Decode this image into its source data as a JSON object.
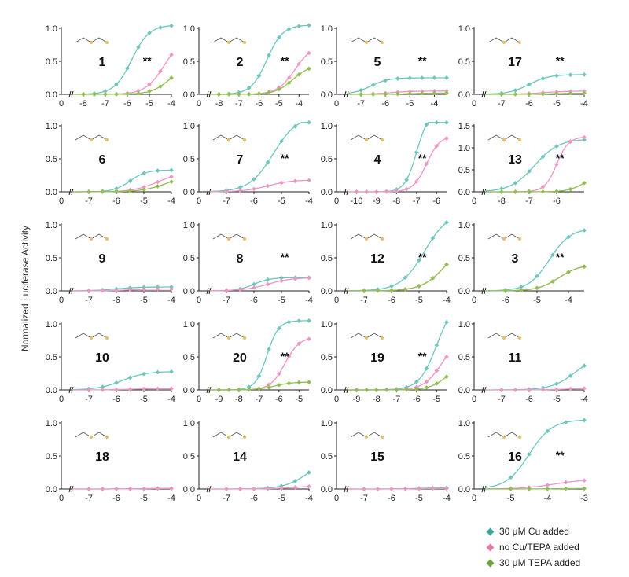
{
  "y_axis_label": "Normalized Luciferase Activity",
  "colors": {
    "cu": "#6cc6be",
    "none": "#ef95c4",
    "tepa": "#8fc04f",
    "mol": "#e6c06e"
  },
  "legend": [
    {
      "label": "30 μM Cu added",
      "color": "#3aa69c"
    },
    {
      "label": "no Cu/TEPA added",
      "color": "#e67aa8"
    },
    {
      "label": "30 μM TEPA added",
      "color": "#6aa33a"
    }
  ],
  "chart_data": [
    {
      "type": "line",
      "title": "1",
      "xlim": [
        -9,
        -4
      ],
      "ylim": [
        0,
        1
      ],
      "xticks": [
        "0",
        "-8",
        "-7",
        "-6",
        "-5",
        "-4"
      ],
      "yticks": [
        "0.0",
        "0.5",
        "1.0"
      ],
      "annotation": "**",
      "series": [
        {
          "name": "30 μM Cu added",
          "ec50": -5.8,
          "top": 1.05,
          "hill": 1.1
        },
        {
          "name": "no Cu/TEPA added",
          "ec50": -4.3,
          "top": 0.9,
          "hill": 1.0
        },
        {
          "name": "30 μM TEPA added",
          "ec50": -4.0,
          "top": 0.5,
          "hill": 1.0
        }
      ]
    },
    {
      "type": "line",
      "title": "2",
      "xlim": [
        -9,
        -3.5
      ],
      "ylim": [
        0,
        1
      ],
      "xticks": [
        "0",
        "-8",
        "-7",
        "-6",
        "-5",
        "-4"
      ],
      "yticks": [
        "0.0",
        "0.5",
        "1.0"
      ],
      "annotation": "**",
      "series": [
        {
          "name": "30 μM Cu added",
          "ec50": -5.6,
          "top": 1.05,
          "hill": 1.1
        },
        {
          "name": "no Cu/TEPA added",
          "ec50": -4.2,
          "top": 0.75,
          "hill": 1.0
        },
        {
          "name": "30 μM TEPA added",
          "ec50": -4.3,
          "top": 0.45,
          "hill": 1.0
        }
      ]
    },
    {
      "type": "line",
      "title": "5",
      "xlim": [
        -8,
        -3.5
      ],
      "ylim": [
        0,
        1
      ],
      "xticks": [
        "0",
        "-7",
        "-6",
        "-5",
        "-4"
      ],
      "yticks": [
        "0.0",
        "0.5",
        "1.0"
      ],
      "annotation": "**",
      "series": [
        {
          "name": "30 μM Cu added",
          "ec50": -6.6,
          "top": 0.25,
          "hill": 1.2
        },
        {
          "name": "no Cu/TEPA added",
          "ec50": -5.8,
          "top": 0.05,
          "hill": 1.0
        },
        {
          "name": "30 μM TEPA added",
          "ec50": -5.0,
          "top": 0.02,
          "hill": 1.0
        }
      ]
    },
    {
      "type": "line",
      "title": "17",
      "xlim": [
        -8,
        -4
      ],
      "ylim": [
        0,
        1
      ],
      "xticks": [
        "0",
        "-7",
        "-6",
        "-5",
        "-4"
      ],
      "yticks": [
        "0.0",
        "0.5",
        "1.0"
      ],
      "annotation": "**",
      "series": [
        {
          "name": "30 μM Cu added",
          "ec50": -6.0,
          "top": 0.3,
          "hill": 1.2
        },
        {
          "name": "no Cu/TEPA added",
          "ec50": -5.5,
          "top": 0.05,
          "hill": 1.0
        },
        {
          "name": "30 μM TEPA added",
          "ec50": -5.0,
          "top": 0.02,
          "hill": 1.0
        }
      ]
    },
    {
      "type": "line",
      "title": "6",
      "xlim": [
        -8,
        -4
      ],
      "ylim": [
        0,
        1
      ],
      "xticks": [
        "0",
        "-7",
        "-6",
        "-5",
        "-4"
      ],
      "yticks": [
        "0.0",
        "0.5",
        "1.0"
      ],
      "annotation": "",
      "series": [
        {
          "name": "30 μM Cu added",
          "ec50": -5.5,
          "top": 0.33,
          "hill": 1.5
        },
        {
          "name": "no Cu/TEPA added",
          "ec50": -4.5,
          "top": 0.3,
          "hill": 1.0
        },
        {
          "name": "30 μM TEPA added",
          "ec50": -4.2,
          "top": 0.25,
          "hill": 1.0
        }
      ]
    },
    {
      "type": "line",
      "title": "7",
      "xlim": [
        -8,
        -4
      ],
      "ylim": [
        0,
        1
      ],
      "xticks": [
        "0",
        "-7",
        "-6",
        "-5",
        "-4"
      ],
      "yticks": [
        "0.0",
        "0.5",
        "1.0"
      ],
      "annotation": "**",
      "series": [
        {
          "name": "30 μM Cu added",
          "ec50": -5.3,
          "top": 1.15,
          "hill": 1.0
        },
        {
          "name": "no Cu/TEPA added",
          "ec50": -5.5,
          "top": 0.18,
          "hill": 1.0
        }
      ]
    },
    {
      "type": "line",
      "title": "4",
      "xlim": [
        -11,
        -5.5
      ],
      "ylim": [
        0,
        1
      ],
      "xticks": [
        "0",
        "-10",
        "-9",
        "-8",
        "-7",
        "-6"
      ],
      "yticks": [
        "0.0",
        "0.5",
        "1.0"
      ],
      "annotation": "**",
      "series": [
        {
          "name": "30 μM Cu added",
          "ec50": -7.0,
          "top": 1.2,
          "hill": 1.5
        },
        {
          "name": "no Cu/TEPA added",
          "ec50": -6.5,
          "top": 0.85,
          "hill": 1.3
        }
      ]
    },
    {
      "type": "line",
      "title": "13",
      "xlim": [
        -9,
        -5
      ],
      "ylim": [
        0,
        1.5
      ],
      "xticks": [
        "0",
        "-8",
        "-7",
        "-6"
      ],
      "yticks": [
        "0.0",
        "0.5",
        "1.0",
        "1.5"
      ],
      "annotation": "**",
      "series": [
        {
          "name": "30 μM Cu added",
          "ec50": -6.8,
          "top": 1.2,
          "hill": 1.0
        },
        {
          "name": "no Cu/TEPA added",
          "ec50": -6.0,
          "top": 1.25,
          "hill": 2.0
        },
        {
          "name": "30 μM TEPA added",
          "ec50": -5.0,
          "top": 0.4,
          "hill": 1.5
        }
      ]
    },
    {
      "type": "line",
      "title": "9",
      "xlim": [
        -8,
        -4
      ],
      "ylim": [
        0,
        1
      ],
      "xticks": [
        "0",
        "-7",
        "-6",
        "-5",
        "-4"
      ],
      "yticks": [
        "0.0",
        "0.5",
        "1.0"
      ],
      "annotation": "",
      "series": [
        {
          "name": "30 μM Cu added",
          "ec50": -6.0,
          "top": 0.06,
          "hill": 1.0
        },
        {
          "name": "no Cu/TEPA added",
          "ec50": -5.5,
          "top": 0.03,
          "hill": 1.0
        }
      ]
    },
    {
      "type": "line",
      "title": "8",
      "xlim": [
        -8,
        -4
      ],
      "ylim": [
        0,
        1
      ],
      "xticks": [
        "0",
        "-7",
        "-6",
        "-5",
        "-4"
      ],
      "yticks": [
        "0.0",
        "0.5",
        "1.0"
      ],
      "annotation": "**",
      "series": [
        {
          "name": "30 μM Cu added",
          "ec50": -6.0,
          "top": 0.2,
          "hill": 1.5
        },
        {
          "name": "no Cu/TEPA added",
          "ec50": -5.5,
          "top": 0.2,
          "hill": 1.0
        }
      ]
    },
    {
      "type": "line",
      "title": "12",
      "xlim": [
        -8,
        -4
      ],
      "ylim": [
        0,
        1
      ],
      "xticks": [
        "0",
        "-7",
        "-6",
        "-5",
        "-4"
      ],
      "yticks": [
        "0.0",
        "0.5",
        "1.0"
      ],
      "annotation": "**",
      "series": [
        {
          "name": "30 μM Cu added",
          "ec50": -4.8,
          "top": 1.2,
          "hill": 1.0
        },
        {
          "name": "no Cu/TEPA added",
          "ec50": -4.0,
          "top": 0.8,
          "hill": 1.0
        },
        {
          "name": "30 μM TEPA added",
          "ec50": -4.0,
          "top": 0.8,
          "hill": 1.0
        }
      ]
    },
    {
      "type": "line",
      "title": "3",
      "xlim": [
        -7,
        -3.5
      ],
      "ylim": [
        0,
        1
      ],
      "xticks": [
        "0",
        "-6",
        "-5",
        "-4"
      ],
      "yticks": [
        "0.0",
        "0.5",
        "1.0"
      ],
      "annotation": "**",
      "series": [
        {
          "name": "30 μM Cu added",
          "ec50": -4.6,
          "top": 0.95,
          "hill": 1.3
        },
        {
          "name": "no Cu/TEPA added",
          "ec50": -4.3,
          "top": 0.4,
          "hill": 1.3
        },
        {
          "name": "30 μM TEPA added",
          "ec50": -4.3,
          "top": 0.4,
          "hill": 1.3
        }
      ]
    },
    {
      "type": "line",
      "title": "10",
      "xlim": [
        -8,
        -4
      ],
      "ylim": [
        0,
        1
      ],
      "xticks": [
        "0",
        "-7",
        "-6",
        "-5",
        "-4"
      ],
      "yticks": [
        "0.0",
        "0.5",
        "1.0"
      ],
      "annotation": "",
      "series": [
        {
          "name": "30 μM Cu added",
          "ec50": -5.8,
          "top": 0.28,
          "hill": 1.0
        },
        {
          "name": "no Cu/TEPA added",
          "ec50": -5.5,
          "top": 0.02,
          "hill": 1.0
        }
      ]
    },
    {
      "type": "line",
      "title": "20",
      "xlim": [
        -10,
        -4.5
      ],
      "ylim": [
        0,
        1
      ],
      "xticks": [
        "0",
        "-9",
        "-8",
        "-7",
        "-6",
        "-5"
      ],
      "yticks": [
        "0.0",
        "0.5",
        "1.0"
      ],
      "annotation": "**",
      "series": [
        {
          "name": "30 μM Cu added",
          "ec50": -6.6,
          "top": 1.05,
          "hill": 1.5
        },
        {
          "name": "no Cu/TEPA added",
          "ec50": -5.7,
          "top": 0.8,
          "hill": 1.2
        },
        {
          "name": "30 μM TEPA added",
          "ec50": -6.2,
          "top": 0.12,
          "hill": 1.0
        }
      ]
    },
    {
      "type": "line",
      "title": "19",
      "xlim": [
        -10,
        -4.5
      ],
      "ylim": [
        0,
        1
      ],
      "xticks": [
        "0",
        "-9",
        "-8",
        "-7",
        "-6",
        "-5"
      ],
      "yticks": [
        "0.0",
        "0.5",
        "1.0"
      ],
      "annotation": "**",
      "series": [
        {
          "name": "30 μM Cu added",
          "ec50": -5.0,
          "top": 1.35,
          "hill": 1.0
        },
        {
          "name": "no Cu/TEPA added",
          "ec50": -4.8,
          "top": 0.75,
          "hill": 1.0
        },
        {
          "name": "30 μM TEPA added",
          "ec50": -4.5,
          "top": 0.4,
          "hill": 1.0
        }
      ]
    },
    {
      "type": "line",
      "title": "11",
      "xlim": [
        -8,
        -4
      ],
      "ylim": [
        0,
        1
      ],
      "xticks": [
        "0",
        "-7",
        "-6",
        "-5",
        "-4"
      ],
      "yticks": [
        "0.0",
        "0.5",
        "1.0"
      ],
      "annotation": "",
      "series": [
        {
          "name": "30 μM Cu added",
          "ec50": -4.3,
          "top": 0.55,
          "hill": 1.0
        },
        {
          "name": "no Cu/TEPA added",
          "ec50": -4.5,
          "top": 0.03,
          "hill": 1.0
        }
      ]
    },
    {
      "type": "line",
      "title": "18",
      "xlim": [
        -8,
        -4
      ],
      "ylim": [
        0,
        1
      ],
      "xticks": [
        "0",
        "-7",
        "-6",
        "-5",
        "-4"
      ],
      "yticks": [
        "0.0",
        "0.5",
        "1.0"
      ],
      "annotation": "",
      "series": [
        {
          "name": "30 μM Cu added",
          "ec50": -5.0,
          "top": 0.01,
          "hill": 1.0
        },
        {
          "name": "no Cu/TEPA added",
          "ec50": -5.0,
          "top": 0.01,
          "hill": 1.0
        }
      ]
    },
    {
      "type": "line",
      "title": "14",
      "xlim": [
        -8,
        -4
      ],
      "ylim": [
        0,
        1
      ],
      "xticks": [
        "0",
        "-7",
        "-6",
        "-5",
        "-4"
      ],
      "yticks": [
        "0.0",
        "0.5",
        "1.0"
      ],
      "annotation": "",
      "series": [
        {
          "name": "30 μM Cu added",
          "ec50": -4.0,
          "top": 0.5,
          "hill": 1.0
        },
        {
          "name": "no Cu/TEPA added",
          "ec50": -4.5,
          "top": 0.05,
          "hill": 1.0
        }
      ]
    },
    {
      "type": "line",
      "title": "15",
      "xlim": [
        -8,
        -4
      ],
      "ylim": [
        0,
        1
      ],
      "xticks": [
        "0",
        "-7",
        "-6",
        "-5",
        "-4"
      ],
      "yticks": [
        "0.0",
        "0.5",
        "1.0"
      ],
      "annotation": "",
      "series": [
        {
          "name": "30 μM Cu added",
          "ec50": -5.0,
          "top": 0.02,
          "hill": 1.0
        },
        {
          "name": "no Cu/TEPA added",
          "ec50": -5.0,
          "top": 0.01,
          "hill": 1.0
        }
      ]
    },
    {
      "type": "line",
      "title": "16",
      "xlim": [
        -6,
        -3
      ],
      "ylim": [
        0,
        1
      ],
      "xticks": [
        "0",
        "-5",
        "-4",
        "-3"
      ],
      "yticks": [
        "0.0",
        "0.5",
        "1.0"
      ],
      "annotation": "**",
      "series": [
        {
          "name": "30 μM Cu added",
          "ec50": -4.5,
          "top": 1.05,
          "hill": 1.4
        },
        {
          "name": "no Cu/TEPA added",
          "ec50": -3.8,
          "top": 0.15,
          "hill": 1.0
        },
        {
          "name": "30 μM TEPA added",
          "ec50": -3.5,
          "top": 0.01,
          "hill": 1.0
        }
      ]
    }
  ]
}
